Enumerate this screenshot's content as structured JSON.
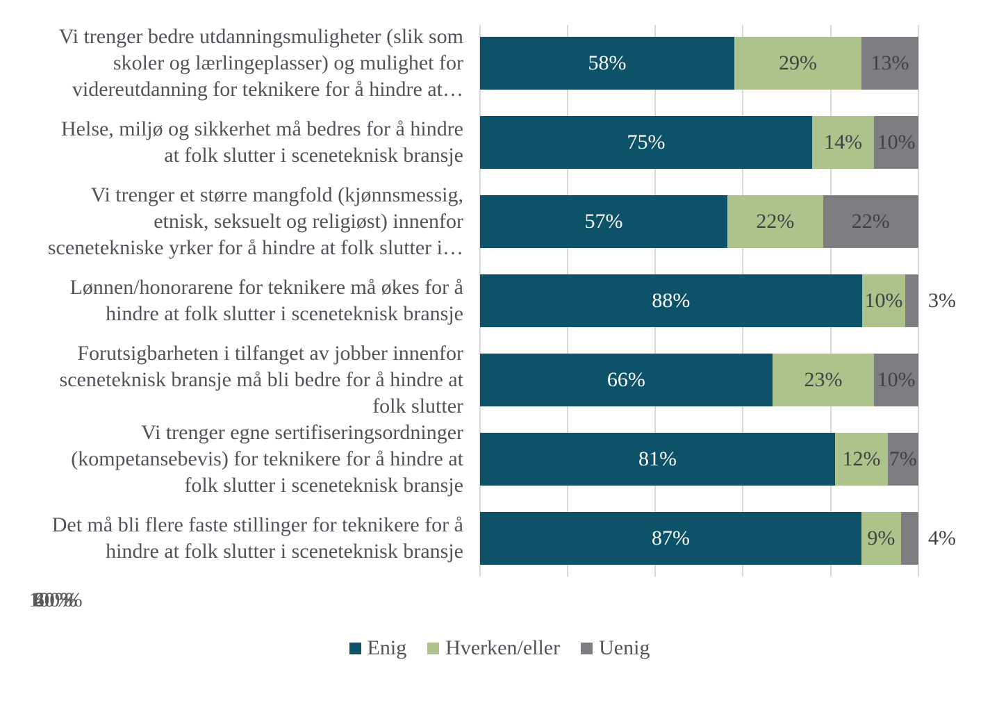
{
  "chart_data": {
    "type": "bar",
    "subtype": "horizontal-stacked-100",
    "title": "",
    "categories": [
      "Vi trenger bedre utdanningsmuligheter (slik som\nskoler og lærlingeplasser) og mulighet for\nvidereutdanning for teknikere for å hindre at…",
      "Helse, miljø og sikkerhet må bedres for å hindre\nat folk slutter i sceneteknisk bransje",
      "Vi trenger et større mangfold (kjønnsmessig,\netnisk, seksuelt og religiøst) innenfor\nscenetekniske yrker for å hindre at folk slutter i…",
      "Lønnen/honorarene for teknikere må økes for å\nhindre at folk slutter i sceneteknisk bransje",
      "Forutsigbarheten i tilfanget av jobber innenfor\nsceneteknisk bransje må bli bedre for å hindre at\nfolk slutter",
      "Vi trenger egne sertifiseringsordninger\n(kompetansebevis) for teknikere for å hindre at\nfolk slutter i sceneteknisk bransje",
      "Det må bli flere faste stillinger for teknikere for å\nhindre at folk slutter i sceneteknisk bransje"
    ],
    "series": [
      {
        "name": "Enig",
        "color": "#0D5268",
        "label_color": "#FFFFFF",
        "values": [
          58,
          75,
          57,
          88,
          66,
          81,
          87
        ]
      },
      {
        "name": "Hverken/eller",
        "color": "#ACC48C",
        "label_color": "#404047",
        "values": [
          29,
          14,
          22,
          10,
          23,
          12,
          9
        ]
      },
      {
        "name": "Uenig",
        "color": "#7E7D82",
        "label_color": "#404047",
        "values": [
          13,
          10,
          22,
          3,
          10,
          7,
          4
        ]
      }
    ],
    "value_suffix": "%",
    "outside_label_threshold": 5,
    "x_ticks": [
      "0 %",
      "20 %",
      "40 %",
      "60 %",
      "80 %",
      "100 %"
    ],
    "xlim": [
      0,
      100
    ],
    "grid": "vertical",
    "legend_position": "bottom"
  },
  "colors": {
    "background": "#FFFFFF",
    "gridline": "#D9D9D9",
    "category_text": "#53525A",
    "tick_text": "#595959",
    "legend_text": "#53525A",
    "outside_label_text": "#404047"
  }
}
